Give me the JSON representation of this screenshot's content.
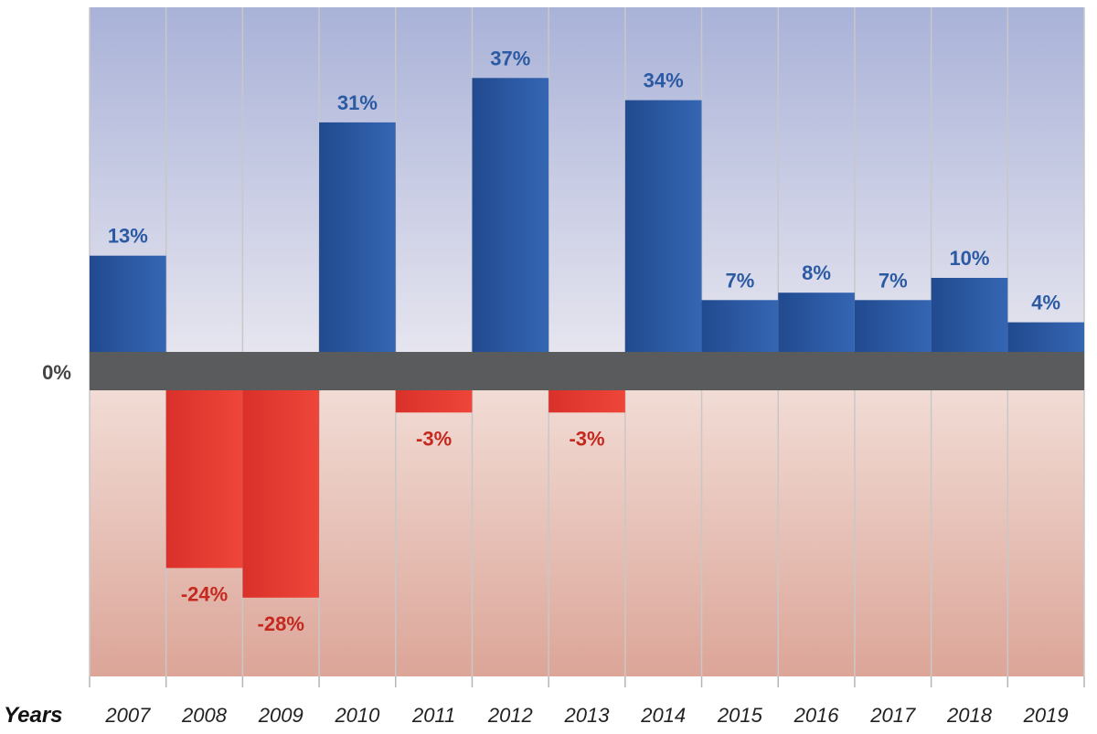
{
  "chart_data": {
    "type": "bar",
    "categories": [
      "2007",
      "2008",
      "2009",
      "2010",
      "2011",
      "2012",
      "2013",
      "2014",
      "2015",
      "2016",
      "2017",
      "2018",
      "2019"
    ],
    "values": [
      13,
      -24,
      -28,
      31,
      -3,
      37,
      -3,
      34,
      7,
      8,
      7,
      10,
      4
    ],
    "value_labels": [
      "13%",
      "-24%",
      "-28%",
      "31%",
      "-3%",
      "37%",
      "-3%",
      "34%",
      "7%",
      "8%",
      "7%",
      "10%",
      "4%"
    ],
    "title": "",
    "xlabel": "Years",
    "ylabel": "",
    "zero_label": "0%",
    "ylim": [
      -35,
      40
    ],
    "grid": "vertical",
    "legend": "none",
    "colors": {
      "positive": "#2b5aa3",
      "negative": "#e23a2c",
      "positive_label": "#2b5aa3",
      "negative_label": "#c5281f",
      "zero_band": "#5a5b5d",
      "top_bg_top": "#a9b2d8",
      "top_bg_bottom": "#e6e5ef",
      "bottom_bg_top": "#f1dcd5",
      "bottom_bg_bottom": "#dca598",
      "gridline": "#c8c8c8"
    }
  }
}
